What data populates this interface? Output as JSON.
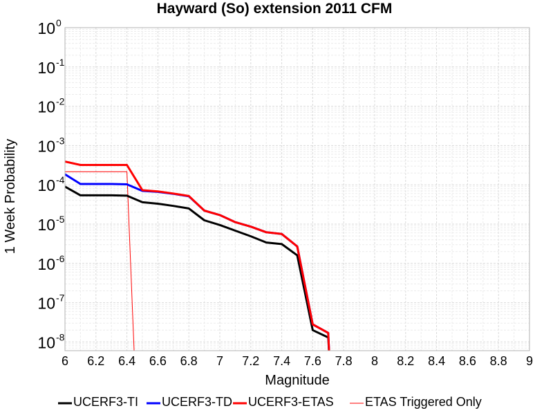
{
  "chart_data": {
    "type": "line",
    "title": "Hayward (So) extension 2011 CFM",
    "xlabel": "Magnitude",
    "ylabel": "1 Week Probability",
    "xlim": [
      6,
      9
    ],
    "ylim": [
      6e-09,
      1
    ],
    "yscale": "log",
    "grid": true,
    "legend_position": "bottom",
    "x_ticks": [
      "6",
      "6.2",
      "6.4",
      "6.6",
      "6.8",
      "7",
      "7.2",
      "7.4",
      "7.6",
      "7.8",
      "8",
      "8.2",
      "8.4",
      "8.6",
      "8.8",
      "9"
    ],
    "y_ticks": [
      {
        "base": "10",
        "exp": "0"
      },
      {
        "base": "10",
        "exp": "-1"
      },
      {
        "base": "10",
        "exp": "-2"
      },
      {
        "base": "10",
        "exp": "-3"
      },
      {
        "base": "10",
        "exp": "-4"
      },
      {
        "base": "10",
        "exp": "-5"
      },
      {
        "base": "10",
        "exp": "-6"
      },
      {
        "base": "10",
        "exp": "-7"
      },
      {
        "base": "10",
        "exp": "-8"
      }
    ],
    "series": [
      {
        "name": "UCERF3-TI",
        "color": "#000000",
        "width": 3,
        "points": [
          [
            6.0,
            9e-05
          ],
          [
            6.1,
            5.4e-05
          ],
          [
            6.2,
            5.4e-05
          ],
          [
            6.3,
            5.4e-05
          ],
          [
            6.4,
            5.3e-05
          ],
          [
            6.5,
            3.6e-05
          ],
          [
            6.6,
            3.3e-05
          ],
          [
            6.7,
            2.9e-05
          ],
          [
            6.8,
            2.5e-05
          ],
          [
            6.9,
            1.25e-05
          ],
          [
            7.0,
            9.5e-06
          ],
          [
            7.1,
            6.8e-06
          ],
          [
            7.2,
            4.9e-06
          ],
          [
            7.3,
            3.4e-06
          ],
          [
            7.4,
            3.1e-06
          ],
          [
            7.5,
            1.6e-06
          ],
          [
            7.6,
            2e-08
          ],
          [
            7.7,
            1.3e-08
          ],
          [
            7.71,
            1e-10
          ]
        ]
      },
      {
        "name": "UCERF3-TD",
        "color": "#0000ff",
        "width": 3,
        "points": [
          [
            6.0,
            0.000185
          ],
          [
            6.1,
            0.000105
          ],
          [
            6.2,
            0.000105
          ],
          [
            6.3,
            0.000105
          ],
          [
            6.4,
            0.000103
          ],
          [
            6.5,
            7e-05
          ],
          [
            6.6,
            6.6e-05
          ],
          [
            6.7,
            5.9e-05
          ],
          [
            6.8,
            5.1e-05
          ],
          [
            6.9,
            2.2e-05
          ],
          [
            7.0,
            1.7e-05
          ],
          [
            7.1,
            1.12e-05
          ],
          [
            7.2,
            8.6e-06
          ],
          [
            7.3,
            6.2e-06
          ],
          [
            7.4,
            5.6e-06
          ],
          [
            7.5,
            2.7e-06
          ],
          [
            7.6,
            2.8e-08
          ],
          [
            7.7,
            1.7e-08
          ],
          [
            7.71,
            1e-10
          ]
        ]
      },
      {
        "name": "UCERF3-ETAS",
        "color": "#ff0000",
        "width": 3,
        "points": [
          [
            6.0,
            0.00039
          ],
          [
            6.1,
            0.00032
          ],
          [
            6.2,
            0.00032
          ],
          [
            6.3,
            0.00032
          ],
          [
            6.4,
            0.00032
          ],
          [
            6.5,
            7.3e-05
          ],
          [
            6.6,
            6.8e-05
          ],
          [
            6.7,
            6e-05
          ],
          [
            6.8,
            5.2e-05
          ],
          [
            6.9,
            2.2e-05
          ],
          [
            7.0,
            1.7e-05
          ],
          [
            7.1,
            1.12e-05
          ],
          [
            7.2,
            8.6e-06
          ],
          [
            7.3,
            6.2e-06
          ],
          [
            7.4,
            5.6e-06
          ],
          [
            7.5,
            2.7e-06
          ],
          [
            7.6,
            2.8e-08
          ],
          [
            7.7,
            1.7e-08
          ],
          [
            7.71,
            1e-10
          ]
        ]
      },
      {
        "name": "ETAS Triggered Only",
        "color": "#ff0000",
        "width": 1,
        "points": [
          [
            6.0,
            0.000215
          ],
          [
            6.1,
            0.000215
          ],
          [
            6.2,
            0.000215
          ],
          [
            6.3,
            0.000215
          ],
          [
            6.4,
            0.000215
          ],
          [
            6.45,
            1e-10
          ]
        ]
      }
    ]
  }
}
